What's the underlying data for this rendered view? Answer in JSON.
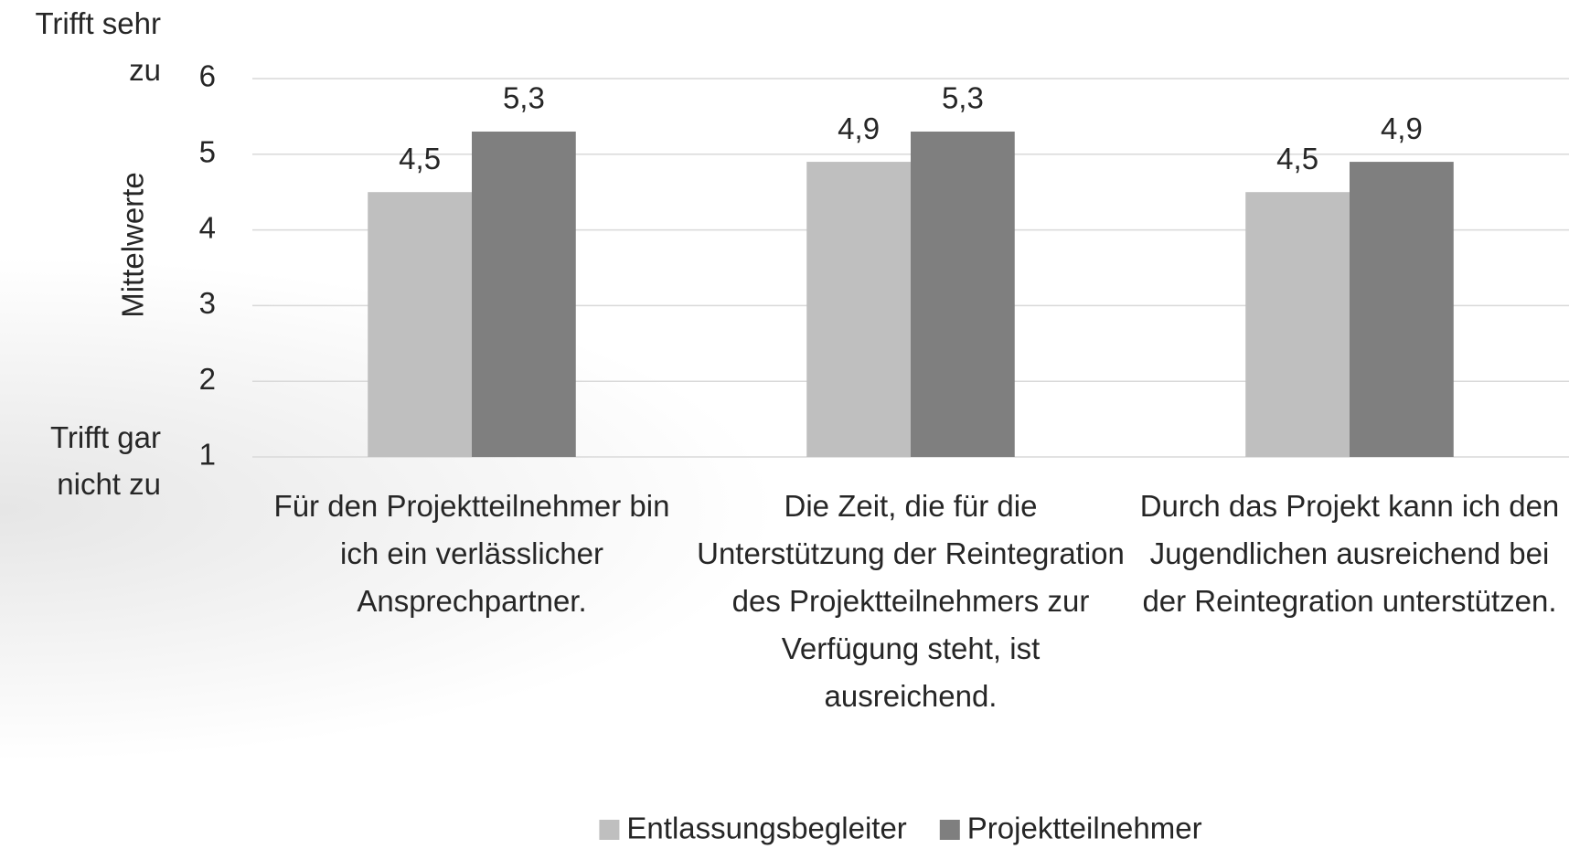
{
  "chart_data": {
    "type": "bar",
    "y_axis_label": "Mittelwerte",
    "annotations": [
      "Trifft sehr zu",
      "Trifft gar nicht zu"
    ],
    "categories": [
      "Für den Projektteilnehmer bin ich ein verlässlicher Ansprechpartner.",
      "Die Zeit, die für die Unterstützung der Reintegration des Projektteilnehmers zur Verfügung steht, ist ausreichend.",
      "Durch das Projekt kann ich den Jugendlichen ausreichend bei der Reintegration unterstützen."
    ],
    "series": [
      {
        "name": "Entlassungsbegleiter",
        "color": "#bfbfbf",
        "values": [
          4.5,
          4.9,
          4.5
        ],
        "value_labels": [
          "4,5",
          "4,9",
          "4,5"
        ]
      },
      {
        "name": "Projektteilnehmer",
        "color": "#7f7f7f",
        "values": [
          5.3,
          5.3,
          4.9
        ],
        "value_labels": [
          "5,3",
          "5,3",
          "4,9"
        ]
      }
    ],
    "ylim": [
      1,
      6
    ],
    "yticks": [
      1,
      2,
      3,
      4,
      5,
      6
    ],
    "grid": true,
    "legend": "bottom"
  }
}
